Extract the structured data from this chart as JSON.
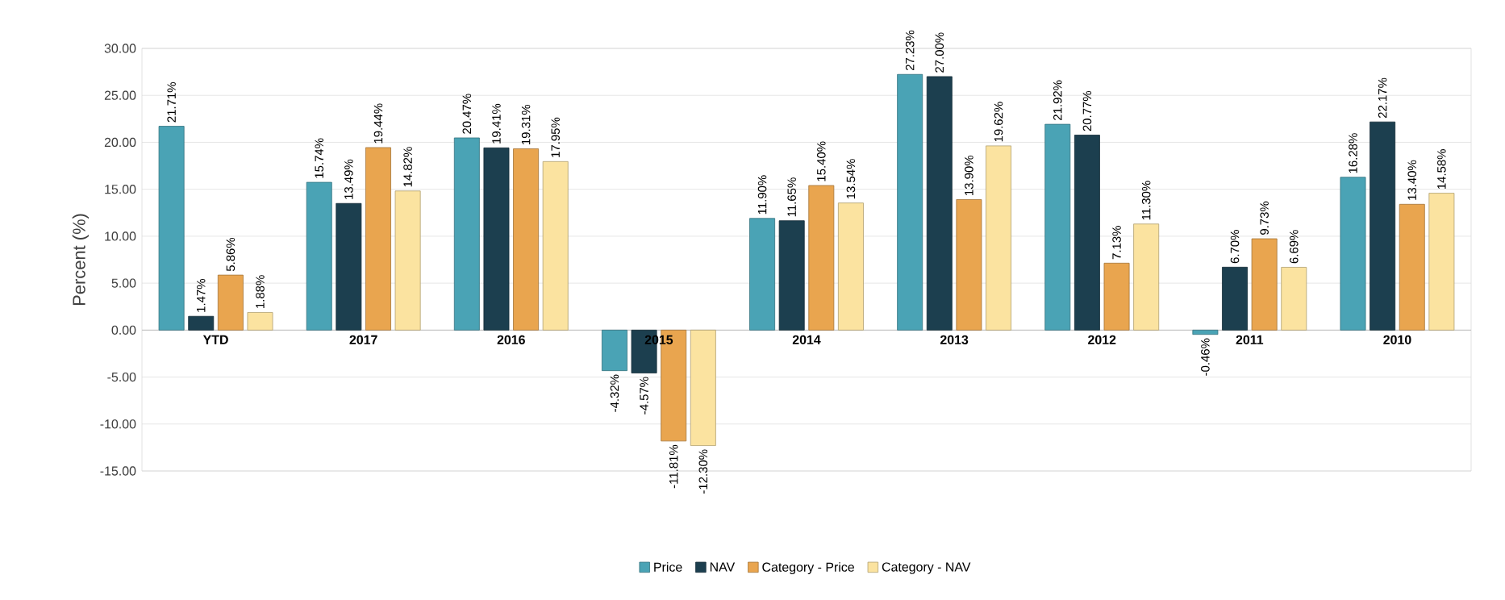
{
  "chart_data": {
    "type": "bar",
    "ylabel": "Percent (%)",
    "categories": [
      "YTD",
      "2017",
      "2016",
      "2015",
      "2014",
      "2013",
      "2012",
      "2011",
      "2010"
    ],
    "series": [
      {
        "name": "Price",
        "color": "#4aa3b5",
        "values": [
          21.71,
          15.74,
          20.47,
          -4.32,
          11.9,
          27.23,
          21.92,
          -0.46,
          16.28
        ],
        "value_labels": [
          "21.71%",
          "15.74%",
          "20.47%",
          "-4.32%",
          "11.90%",
          "27.23%",
          "21.92%",
          "-0.46%",
          "16.28%"
        ]
      },
      {
        "name": "NAV",
        "color": "#1c3f4f",
        "values": [
          1.47,
          13.49,
          19.41,
          -4.57,
          11.65,
          27.0,
          20.77,
          6.7,
          22.17
        ],
        "value_labels": [
          "1.47%",
          "13.49%",
          "19.41%",
          "-4.57%",
          "11.65%",
          "27.00%",
          "20.77%",
          "6.70%",
          "22.17%"
        ]
      },
      {
        "name": "Category - Price",
        "color": "#e9a54f",
        "values": [
          5.86,
          19.44,
          19.31,
          -11.81,
          15.4,
          13.9,
          7.13,
          9.73,
          13.4
        ],
        "value_labels": [
          "5.86%",
          "19.44%",
          "19.31%",
          "-11.81%",
          "15.40%",
          "13.90%",
          "7.13%",
          "9.73%",
          "13.40%"
        ]
      },
      {
        "name": "Category - NAV",
        "color": "#fbe3a0",
        "values": [
          1.88,
          14.82,
          17.95,
          -12.3,
          13.54,
          19.62,
          11.3,
          6.69,
          14.58
        ],
        "value_labels": [
          "1.88%",
          "14.82%",
          "17.95%",
          "-12.30%",
          "13.54%",
          "19.62%",
          "11.30%",
          "6.69%",
          "14.58%"
        ]
      }
    ],
    "ylim": [
      -15,
      30
    ],
    "yticks": [
      {
        "value": -15,
        "label": "-15.00"
      },
      {
        "value": -10,
        "label": "-10.00"
      },
      {
        "value": -5,
        "label": "-5.00"
      },
      {
        "value": 0,
        "label": "0.00"
      },
      {
        "value": 5,
        "label": "5.00"
      },
      {
        "value": 10,
        "label": "10.00"
      },
      {
        "value": 15,
        "label": "15.00"
      },
      {
        "value": 20,
        "label": "20.00"
      },
      {
        "value": 25,
        "label": "25.00"
      },
      {
        "value": 30,
        "label": "30.00"
      }
    ],
    "grid": true,
    "legend": "bottom"
  }
}
